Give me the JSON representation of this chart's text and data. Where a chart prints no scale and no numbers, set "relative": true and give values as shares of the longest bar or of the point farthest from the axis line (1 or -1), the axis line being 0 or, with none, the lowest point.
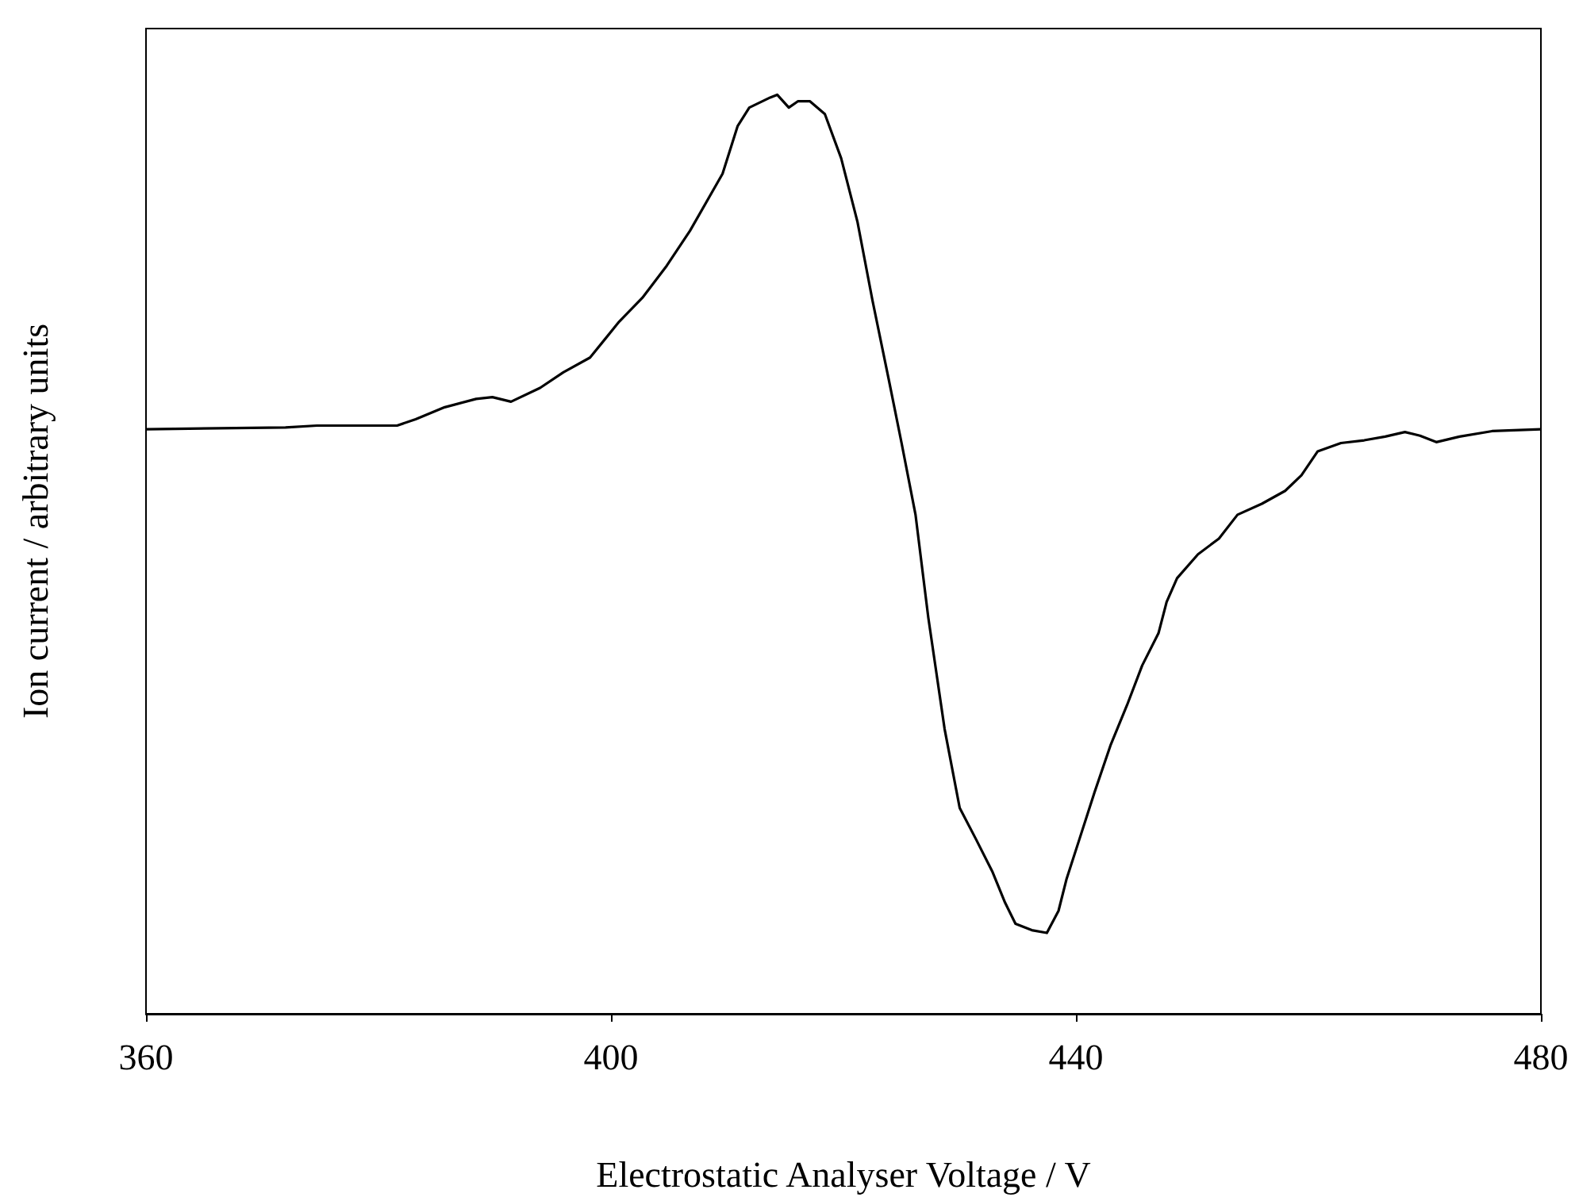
{
  "chart_data": {
    "type": "line",
    "relative": true,
    "xlabel": "Electrostatic Analyser Voltage / V",
    "ylabel": "Ion current / arbitrary units",
    "xlim": [
      360,
      480
    ],
    "xticks": [
      360,
      400,
      440,
      480
    ],
    "marker": "none",
    "line_style": "solid",
    "series": [
      {
        "color": "#000000",
        "x": [
          360,
          372.0,
          374.7,
          381.6,
          383.2,
          385.7,
          388.4,
          389.8,
          391.4,
          393.9,
          395.9,
          398.2,
          400.7,
          402.7,
          404.8,
          406.8,
          409.6,
          410.9,
          411.9,
          413.7,
          414.3,
          415.3,
          416.1,
          417.1,
          418.4,
          419.8,
          421.2,
          422.5,
          423.9,
          425.0,
          426.2,
          427.3,
          428.7,
          430.0,
          431.4,
          432.8,
          433.9,
          434.8,
          436.2,
          437.5,
          438.5,
          439.2,
          440.3,
          441.6,
          443.0,
          444.4,
          445.7,
          447.1,
          447.8,
          448.7,
          450.5,
          452.3,
          453.9,
          456.0,
          458.0,
          459.4,
          460.8,
          462.8,
          464.8,
          466.6,
          468.3,
          469.6,
          471.0,
          473.0,
          475.8,
          480
        ],
        "values": [
          0.636,
          0.638,
          0.64,
          0.64,
          0.647,
          0.66,
          0.669,
          0.671,
          0.666,
          0.681,
          0.698,
          0.714,
          0.753,
          0.779,
          0.814,
          0.852,
          0.914,
          0.966,
          0.986,
          0.997,
          1.0,
          0.986,
          0.993,
          0.993,
          0.979,
          0.931,
          0.862,
          0.776,
          0.69,
          0.621,
          0.543,
          0.431,
          0.31,
          0.224,
          0.19,
          0.155,
          0.121,
          0.098,
          0.091,
          0.088,
          0.112,
          0.147,
          0.19,
          0.241,
          0.293,
          0.336,
          0.379,
          0.414,
          0.448,
          0.474,
          0.5,
          0.517,
          0.543,
          0.555,
          0.569,
          0.586,
          0.612,
          0.621,
          0.624,
          0.628,
          0.633,
          0.629,
          0.622,
          0.628,
          0.634,
          0.636
        ]
      }
    ]
  }
}
